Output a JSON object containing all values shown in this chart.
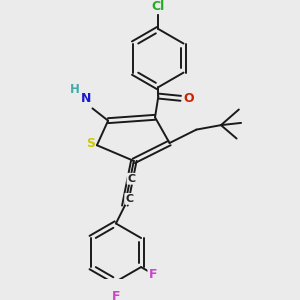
{
  "bg_color": "#ebebeb",
  "bond_color": "#1a1a1a",
  "atom_colors": {
    "Cl": "#22aa22",
    "N": "#1a1acc",
    "O": "#cc2200",
    "S": "#cccc00",
    "F": "#cc44cc",
    "H": "#44aaaa",
    "C": "#222222"
  },
  "figsize": [
    3.0,
    3.0
  ],
  "dpi": 100
}
